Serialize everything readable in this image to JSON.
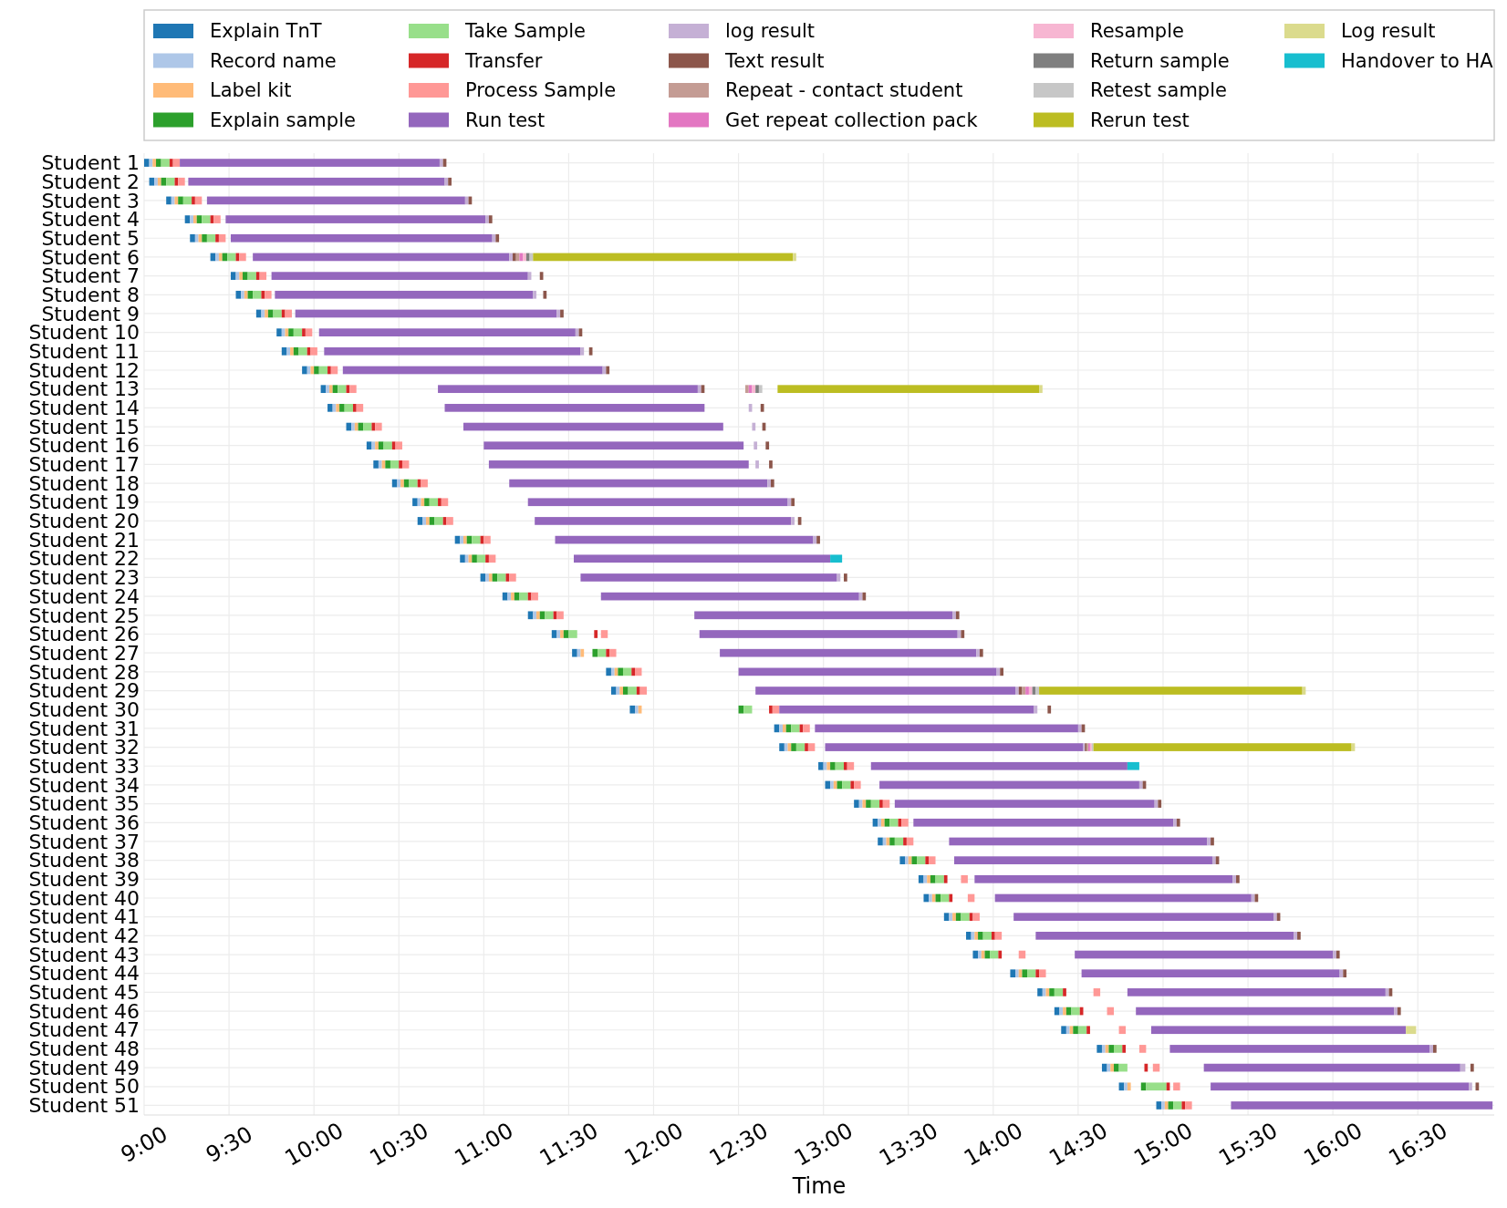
{
  "chart_data": {
    "type": "bar",
    "orientation": "horizontal",
    "xlabel": "Time",
    "grid": true,
    "legend": "top",
    "categories": [
      "Student 1",
      "Student 2",
      "Student 3",
      "Student 4",
      "Student 5",
      "Student 6",
      "Student 7",
      "Student 8",
      "Student 9",
      "Student 10",
      "Student 11",
      "Student 12",
      "Student 13",
      "Student 14",
      "Student 15",
      "Student 16",
      "Student 17",
      "Student 18",
      "Student 19",
      "Student 20",
      "Student 21",
      "Student 22",
      "Student 23",
      "Student 24",
      "Student 25",
      "Student 26",
      "Student 27",
      "Student 28",
      "Student 29",
      "Student 30",
      "Student 31",
      "Student 32",
      "Student 33",
      "Student 34",
      "Student 35",
      "Student 36",
      "Student 37",
      "Student 38",
      "Student 39",
      "Student 40",
      "Student 41",
      "Student 42",
      "Student 43",
      "Student 44",
      "Student 45",
      "Student 46",
      "Student 47",
      "Student 48",
      "Student 49",
      "Student 50",
      "Student 51"
    ],
    "xlim": [
      9,
      16.95
    ],
    "xticks": [
      {
        "value": 9,
        "label": "9:00"
      },
      {
        "value": 9.5,
        "label": "9:30"
      },
      {
        "value": 10,
        "label": "10:00"
      },
      {
        "value": 10.5,
        "label": "10:30"
      },
      {
        "value": 11,
        "label": "11:00"
      },
      {
        "value": 11.5,
        "label": "11:30"
      },
      {
        "value": 12,
        "label": "12:00"
      },
      {
        "value": 12.5,
        "label": "12:30"
      },
      {
        "value": 13,
        "label": "13:00"
      },
      {
        "value": 13.5,
        "label": "13:30"
      },
      {
        "value": 14,
        "label": "14:00"
      },
      {
        "value": 14.5,
        "label": "14:30"
      },
      {
        "value": 15,
        "label": "15:00"
      },
      {
        "value": 15.5,
        "label": "15:30"
      },
      {
        "value": 16,
        "label": "16:00"
      },
      {
        "value": 16.5,
        "label": "16:30"
      }
    ],
    "series": [
      {
        "name": "Explain TnT",
        "color": "#1f77b4",
        "base": [
          9.0,
          9.03,
          9.13,
          9.24,
          9.27,
          9.39,
          9.51,
          9.54,
          9.66,
          9.78,
          9.81,
          9.93,
          10.04,
          10.08,
          10.19,
          10.31,
          10.35,
          10.46,
          10.58,
          10.61,
          10.83,
          10.86,
          10.98,
          11.11,
          11.26,
          11.4,
          11.52,
          11.72,
          11.75,
          11.86,
          12.71,
          12.74,
          12.97,
          13.01,
          13.18,
          13.29,
          13.32,
          13.45,
          13.56,
          13.59,
          13.71,
          13.84,
          13.88,
          14.1,
          14.26,
          14.36,
          14.4,
          14.61,
          14.64,
          14.74,
          14.96
        ],
        "values": [
          0.03,
          0.03,
          0.03,
          0.03,
          0.03,
          0.03,
          0.03,
          0.03,
          0.03,
          0.03,
          0.03,
          0.03,
          0.03,
          0.03,
          0.03,
          0.03,
          0.03,
          0.03,
          0.03,
          0.03,
          0.03,
          0.03,
          0.03,
          0.03,
          0.03,
          0.03,
          0.03,
          0.03,
          0.03,
          0.03,
          0.03,
          0.03,
          0.03,
          0.03,
          0.03,
          0.03,
          0.03,
          0.03,
          0.03,
          0.03,
          0.03,
          0.03,
          0.03,
          0.03,
          0.03,
          0.03,
          0.03,
          0.03,
          0.03,
          0.03,
          0.03
        ]
      },
      {
        "name": "Record name",
        "color": "#aec7e8",
        "base": [
          9.03,
          9.06,
          9.16,
          9.27,
          9.3,
          9.42,
          9.54,
          9.57,
          9.69,
          9.81,
          9.84,
          9.96,
          10.07,
          10.11,
          10.22,
          10.34,
          10.38,
          10.49,
          10.61,
          10.64,
          10.86,
          10.89,
          11.01,
          11.14,
          11.29,
          11.43,
          11.55,
          11.75,
          11.78,
          11.89,
          12.74,
          12.77,
          13.0,
          13.04,
          13.21,
          13.32,
          13.35,
          13.48,
          13.59,
          13.62,
          13.74,
          13.87,
          13.91,
          14.13,
          14.29,
          14.39,
          14.43,
          14.64,
          14.67,
          14.77,
          14.99
        ],
        "values": [
          0.02,
          0.02,
          0.02,
          0.02,
          0.02,
          0.02,
          0.02,
          0.02,
          0.02,
          0.02,
          0.02,
          0.02,
          0.02,
          0.02,
          0.02,
          0.02,
          0.02,
          0.02,
          0.02,
          0.02,
          0.02,
          0.02,
          0.02,
          0.02,
          0.02,
          0.02,
          0.02,
          0.02,
          0.02,
          0.02,
          0.02,
          0.02,
          0.02,
          0.02,
          0.02,
          0.02,
          0.02,
          0.02,
          0.02,
          0.02,
          0.02,
          0.02,
          0.02,
          0.02,
          0.02,
          0.02,
          0.02,
          0.02,
          0.02,
          0.02,
          0.02
        ]
      },
      {
        "name": "Label kit",
        "color": "#ffbb78",
        "base": [
          9.05,
          9.08,
          9.18,
          9.29,
          9.32,
          9.44,
          9.56,
          9.59,
          9.71,
          9.83,
          9.86,
          9.98,
          10.09,
          10.13,
          10.24,
          10.36,
          10.4,
          10.51,
          10.63,
          10.66,
          10.88,
          10.91,
          11.03,
          11.16,
          11.31,
          11.45,
          11.57,
          11.77,
          11.8,
          11.91,
          12.76,
          12.79,
          13.02,
          13.06,
          13.23,
          13.34,
          13.37,
          13.5,
          13.61,
          13.64,
          13.76,
          13.89,
          13.93,
          14.15,
          14.31,
          14.41,
          14.45,
          14.66,
          14.69,
          14.79,
          15.01
        ],
        "values": [
          0.02,
          0.02,
          0.02,
          0.02,
          0.02,
          0.02,
          0.02,
          0.02,
          0.02,
          0.02,
          0.02,
          0.02,
          0.02,
          0.02,
          0.02,
          0.02,
          0.02,
          0.02,
          0.02,
          0.02,
          0.02,
          0.02,
          0.02,
          0.02,
          0.02,
          0.02,
          0.02,
          0.02,
          0.02,
          0.02,
          0.02,
          0.02,
          0.02,
          0.02,
          0.02,
          0.02,
          0.02,
          0.02,
          0.02,
          0.02,
          0.02,
          0.02,
          0.02,
          0.02,
          0.02,
          0.02,
          0.02,
          0.02,
          0.02,
          0.02,
          0.02
        ]
      },
      {
        "name": "Explain sample",
        "color": "#2ca02c",
        "base": [
          9.07,
          9.1,
          9.2,
          9.31,
          9.34,
          9.46,
          9.58,
          9.61,
          9.73,
          9.85,
          9.88,
          10.0,
          10.11,
          10.15,
          10.26,
          10.38,
          10.42,
          10.53,
          10.65,
          10.68,
          10.9,
          10.93,
          11.05,
          11.18,
          11.33,
          11.47,
          11.64,
          11.79,
          11.82,
          12.5,
          12.78,
          12.81,
          13.04,
          13.08,
          13.25,
          13.36,
          13.39,
          13.52,
          13.63,
          13.66,
          13.78,
          13.91,
          13.95,
          14.17,
          14.33,
          14.43,
          14.47,
          14.68,
          14.71,
          14.87,
          15.03
        ],
        "values": [
          0.03,
          0.03,
          0.03,
          0.03,
          0.03,
          0.03,
          0.03,
          0.03,
          0.03,
          0.03,
          0.03,
          0.03,
          0.03,
          0.03,
          0.03,
          0.03,
          0.03,
          0.03,
          0.03,
          0.03,
          0.03,
          0.03,
          0.03,
          0.03,
          0.03,
          0.03,
          0.03,
          0.03,
          0.03,
          0.03,
          0.03,
          0.03,
          0.03,
          0.03,
          0.03,
          0.03,
          0.03,
          0.03,
          0.03,
          0.03,
          0.03,
          0.03,
          0.03,
          0.03,
          0.03,
          0.03,
          0.03,
          0.03,
          0.03,
          0.03,
          0.03
        ]
      },
      {
        "name": "Take Sample",
        "color": "#98df8a",
        "base": [
          9.1,
          9.13,
          9.23,
          9.34,
          9.37,
          9.49,
          9.61,
          9.64,
          9.76,
          9.88,
          9.91,
          10.03,
          10.14,
          10.18,
          10.29,
          10.41,
          10.45,
          10.56,
          10.68,
          10.71,
          10.93,
          10.96,
          11.08,
          11.21,
          11.36,
          11.5,
          11.67,
          11.82,
          11.85,
          12.53,
          12.81,
          12.84,
          13.07,
          13.11,
          13.28,
          13.39,
          13.42,
          13.55,
          13.66,
          13.69,
          13.81,
          13.94,
          13.98,
          14.2,
          14.36,
          14.46,
          14.5,
          14.71,
          14.74,
          14.9,
          15.06
        ],
        "values": [
          0.05,
          0.05,
          0.05,
          0.05,
          0.05,
          0.05,
          0.05,
          0.05,
          0.05,
          0.05,
          0.05,
          0.05,
          0.05,
          0.05,
          0.05,
          0.05,
          0.05,
          0.05,
          0.05,
          0.05,
          0.05,
          0.05,
          0.05,
          0.05,
          0.05,
          0.05,
          0.05,
          0.05,
          0.05,
          0.05,
          0.05,
          0.05,
          0.05,
          0.05,
          0.05,
          0.05,
          0.05,
          0.05,
          0.05,
          0.05,
          0.05,
          0.05,
          0.05,
          0.05,
          0.05,
          0.05,
          0.05,
          0.05,
          0.05,
          0.12,
          0.05
        ]
      },
      {
        "name": "Transfer",
        "color": "#d62728",
        "base": [
          9.15,
          9.18,
          9.28,
          9.39,
          9.42,
          9.54,
          9.66,
          9.69,
          9.81,
          9.93,
          9.96,
          10.08,
          10.19,
          10.23,
          10.34,
          10.46,
          10.5,
          10.61,
          10.73,
          10.76,
          10.98,
          11.01,
          11.13,
          11.26,
          11.41,
          11.65,
          11.72,
          11.87,
          11.9,
          12.68,
          12.86,
          12.89,
          13.12,
          13.16,
          13.33,
          13.44,
          13.47,
          13.6,
          13.71,
          13.74,
          13.86,
          13.99,
          14.03,
          14.25,
          14.41,
          14.51,
          14.55,
          14.76,
          14.89,
          15.02,
          15.11
        ],
        "values": [
          0.02,
          0.02,
          0.02,
          0.02,
          0.02,
          0.02,
          0.02,
          0.02,
          0.02,
          0.02,
          0.02,
          0.02,
          0.02,
          0.02,
          0.02,
          0.02,
          0.02,
          0.02,
          0.02,
          0.02,
          0.02,
          0.02,
          0.02,
          0.02,
          0.02,
          0.02,
          0.02,
          0.02,
          0.02,
          0.02,
          0.02,
          0.02,
          0.02,
          0.02,
          0.02,
          0.02,
          0.02,
          0.02,
          0.02,
          0.02,
          0.02,
          0.02,
          0.02,
          0.02,
          0.02,
          0.02,
          0.02,
          0.02,
          0.02,
          0.02,
          0.02
        ]
      },
      {
        "name": "Process Sample",
        "color": "#ff9896",
        "base": [
          9.17,
          9.2,
          9.3,
          9.41,
          9.44,
          9.56,
          9.68,
          9.71,
          9.83,
          9.95,
          9.98,
          10.1,
          10.21,
          10.25,
          10.36,
          10.48,
          10.52,
          10.63,
          10.75,
          10.78,
          11.0,
          11.03,
          11.15,
          11.28,
          11.43,
          11.69,
          11.74,
          11.89,
          11.92,
          12.7,
          12.88,
          12.91,
          13.14,
          13.18,
          13.35,
          13.46,
          13.49,
          13.62,
          13.81,
          13.85,
          13.88,
          14.01,
          14.15,
          14.27,
          14.59,
          14.67,
          14.74,
          14.86,
          14.94,
          15.06,
          15.13
        ],
        "values": [
          0.04,
          0.04,
          0.04,
          0.04,
          0.04,
          0.04,
          0.04,
          0.04,
          0.04,
          0.04,
          0.04,
          0.04,
          0.04,
          0.04,
          0.04,
          0.04,
          0.04,
          0.04,
          0.04,
          0.04,
          0.04,
          0.04,
          0.04,
          0.04,
          0.04,
          0.04,
          0.04,
          0.04,
          0.04,
          0.04,
          0.04,
          0.04,
          0.04,
          0.04,
          0.04,
          0.04,
          0.04,
          0.04,
          0.04,
          0.04,
          0.04,
          0.04,
          0.04,
          0.04,
          0.04,
          0.04,
          0.04,
          0.04,
          0.04,
          0.04,
          0.04
        ]
      },
      {
        "name": "Run test",
        "color": "#9467bd",
        "base": [
          9.21,
          9.26,
          9.37,
          9.48,
          9.51,
          9.64,
          9.75,
          9.77,
          9.89,
          10.03,
          10.06,
          10.17,
          10.73,
          10.77,
          10.88,
          11.0,
          11.03,
          11.15,
          11.26,
          11.3,
          11.42,
          11.53,
          11.57,
          11.69,
          12.24,
          12.27,
          12.39,
          12.5,
          12.6,
          12.74,
          12.95,
          13.01,
          13.28,
          13.33,
          13.42,
          13.53,
          13.74,
          13.77,
          13.89,
          14.01,
          14.12,
          14.25,
          14.48,
          14.52,
          14.79,
          14.84,
          14.93,
          15.04,
          15.24,
          15.28,
          15.4
        ],
        "values": [
          1.53,
          1.51,
          1.52,
          1.53,
          1.54,
          1.51,
          1.51,
          1.52,
          1.54,
          1.51,
          1.51,
          1.53,
          1.53,
          1.53,
          1.53,
          1.53,
          1.53,
          1.52,
          1.53,
          1.51,
          1.52,
          1.51,
          1.51,
          1.52,
          1.52,
          1.52,
          1.51,
          1.52,
          1.53,
          1.5,
          1.55,
          1.52,
          1.51,
          1.53,
          1.53,
          1.53,
          1.52,
          1.52,
          1.52,
          1.51,
          1.53,
          1.52,
          1.52,
          1.52,
          1.52,
          1.52,
          1.5,
          1.53,
          1.51,
          1.52,
          1.54
        ]
      },
      {
        "name": "log result",
        "color": "#c5b0d5",
        "base": [
          10.74,
          10.77,
          10.89,
          11.01,
          11.05,
          11.15,
          11.26,
          11.29,
          11.43,
          11.54,
          11.57,
          11.7,
          12.26,
          12.56,
          12.58,
          12.59,
          12.6,
          12.67,
          12.79,
          12.81,
          12.94,
          null,
          13.08,
          13.21,
          13.76,
          13.79,
          13.9,
          14.02,
          14.13,
          14.24,
          14.5,
          14.53,
          null,
          14.86,
          14.95,
          15.06,
          15.26,
          15.29,
          15.41,
          15.52,
          15.65,
          15.77,
          16.0,
          16.04,
          16.31,
          16.36,
          null,
          16.57,
          16.75,
          16.8,
          null
        ],
        "values": [
          0.02,
          0.02,
          0.02,
          0.02,
          0.02,
          0.02,
          0.02,
          0.02,
          0.02,
          0.02,
          0.02,
          0.02,
          0.02,
          0.02,
          0.02,
          0.02,
          0.02,
          0.02,
          0.02,
          0.02,
          0.02,
          null,
          0.02,
          0.02,
          0.02,
          0.02,
          0.02,
          0.02,
          0.02,
          0.02,
          0.02,
          0.01,
          null,
          0.02,
          0.02,
          0.02,
          0.02,
          0.02,
          0.02,
          0.02,
          0.02,
          0.02,
          0.02,
          0.02,
          0.02,
          0.02,
          null,
          0.02,
          0.03,
          0.02,
          null
        ]
      },
      {
        "name": "Text result",
        "color": "#8c564b",
        "base": [
          10.76,
          10.79,
          10.91,
          11.03,
          11.07,
          11.17,
          11.33,
          11.35,
          11.45,
          11.56,
          11.62,
          11.72,
          12.28,
          12.63,
          12.64,
          12.66,
          12.68,
          12.69,
          12.81,
          12.85,
          12.96,
          null,
          13.12,
          13.23,
          13.78,
          13.81,
          13.92,
          14.04,
          14.15,
          14.32,
          14.52,
          14.54,
          null,
          14.88,
          14.97,
          15.08,
          15.28,
          15.31,
          15.43,
          15.54,
          15.67,
          15.79,
          16.02,
          16.06,
          16.33,
          16.38,
          null,
          16.59,
          16.81,
          16.84,
          null
        ],
        "values": [
          0.02,
          0.02,
          0.02,
          0.02,
          0.02,
          0.02,
          0.02,
          0.02,
          0.02,
          0.02,
          0.02,
          0.02,
          0.02,
          0.02,
          0.02,
          0.02,
          0.02,
          0.02,
          0.02,
          0.02,
          0.02,
          null,
          0.02,
          0.02,
          0.02,
          0.02,
          0.02,
          0.02,
          0.02,
          0.02,
          0.02,
          0.01,
          null,
          0.02,
          0.02,
          0.02,
          0.02,
          0.02,
          0.02,
          0.02,
          0.02,
          0.02,
          0.02,
          0.02,
          0.02,
          0.02,
          null,
          0.02,
          0.02,
          0.02,
          null
        ]
      },
      {
        "name": "Repeat - contact student",
        "color": "#c49c94",
        "base": [
          null,
          null,
          null,
          null,
          null,
          11.19,
          null,
          null,
          null,
          null,
          null,
          null,
          12.54,
          null,
          null,
          null,
          null,
          null,
          null,
          null,
          null,
          null,
          null,
          null,
          null,
          null,
          null,
          null,
          14.17,
          null,
          null,
          14.55,
          null,
          null,
          null,
          null,
          null,
          null,
          null,
          null,
          null,
          null,
          null,
          null,
          null,
          null,
          null,
          null,
          null,
          null,
          null
        ],
        "values": [
          null,
          null,
          null,
          null,
          null,
          0.02,
          null,
          null,
          null,
          null,
          null,
          null,
          0.02,
          null,
          null,
          null,
          null,
          null,
          null,
          null,
          null,
          null,
          null,
          null,
          null,
          null,
          null,
          null,
          0.02,
          null,
          null,
          0.01,
          null,
          null,
          null,
          null,
          null,
          null,
          null,
          null,
          null,
          null,
          null,
          null,
          null,
          null,
          null,
          null,
          null,
          null,
          null
        ]
      },
      {
        "name": "Get repeat collection pack",
        "color": "#e377c2",
        "base": [
          null,
          null,
          null,
          null,
          null,
          11.21,
          null,
          null,
          null,
          null,
          null,
          null,
          12.56,
          null,
          null,
          null,
          null,
          null,
          null,
          null,
          null,
          null,
          null,
          null,
          null,
          null,
          null,
          null,
          14.19,
          null,
          null,
          14.56,
          null,
          null,
          null,
          null,
          null,
          null,
          null,
          null,
          null,
          null,
          null,
          null,
          null,
          null,
          null,
          null,
          null,
          null,
          null
        ],
        "values": [
          null,
          null,
          null,
          null,
          null,
          0.02,
          null,
          null,
          null,
          null,
          null,
          null,
          0.02,
          null,
          null,
          null,
          null,
          null,
          null,
          null,
          null,
          null,
          null,
          null,
          null,
          null,
          null,
          null,
          0.02,
          null,
          null,
          0.01,
          null,
          null,
          null,
          null,
          null,
          null,
          null,
          null,
          null,
          null,
          null,
          null,
          null,
          null,
          null,
          null,
          null,
          null,
          null
        ]
      },
      {
        "name": "Resample",
        "color": "#f7b6d2",
        "base": [
          null,
          null,
          null,
          null,
          null,
          11.23,
          null,
          null,
          null,
          null,
          null,
          null,
          12.58,
          null,
          null,
          null,
          null,
          null,
          null,
          null,
          null,
          null,
          null,
          null,
          null,
          null,
          null,
          null,
          14.21,
          null,
          null,
          14.57,
          null,
          null,
          null,
          null,
          null,
          null,
          null,
          null,
          null,
          null,
          null,
          null,
          null,
          null,
          null,
          null,
          null,
          null,
          null
        ],
        "values": [
          null,
          null,
          null,
          null,
          null,
          0.02,
          null,
          null,
          null,
          null,
          null,
          null,
          0.02,
          null,
          null,
          null,
          null,
          null,
          null,
          null,
          null,
          null,
          null,
          null,
          null,
          null,
          null,
          null,
          0.02,
          null,
          null,
          0.01,
          null,
          null,
          null,
          null,
          null,
          null,
          null,
          null,
          null,
          null,
          null,
          null,
          null,
          null,
          null,
          null,
          null,
          null,
          null
        ]
      },
      {
        "name": "Return sample",
        "color": "#7f7f7f",
        "base": [
          null,
          null,
          null,
          null,
          null,
          11.25,
          null,
          null,
          null,
          null,
          null,
          null,
          12.6,
          null,
          null,
          null,
          null,
          null,
          null,
          null,
          null,
          null,
          null,
          null,
          null,
          null,
          null,
          null,
          14.23,
          null,
          null,
          null,
          null,
          null,
          null,
          null,
          null,
          null,
          null,
          null,
          null,
          null,
          null,
          null,
          null,
          null,
          null,
          null,
          null,
          null,
          null
        ],
        "values": [
          null,
          null,
          null,
          null,
          null,
          0.02,
          null,
          null,
          null,
          null,
          null,
          null,
          0.02,
          null,
          null,
          null,
          null,
          null,
          null,
          null,
          null,
          null,
          null,
          null,
          null,
          null,
          null,
          null,
          0.02,
          null,
          null,
          null,
          null,
          null,
          null,
          null,
          null,
          null,
          null,
          null,
          null,
          null,
          null,
          null,
          null,
          null,
          null,
          null,
          null,
          null,
          null
        ]
      },
      {
        "name": "Retest sample",
        "color": "#c7c7c7",
        "base": [
          null,
          null,
          null,
          null,
          null,
          11.27,
          null,
          null,
          null,
          null,
          null,
          null,
          12.62,
          null,
          null,
          null,
          null,
          null,
          null,
          null,
          null,
          null,
          null,
          null,
          null,
          null,
          null,
          null,
          14.25,
          null,
          null,
          14.58,
          null,
          null,
          null,
          null,
          null,
          null,
          null,
          null,
          null,
          null,
          null,
          null,
          null,
          null,
          null,
          null,
          null,
          null,
          null
        ],
        "values": [
          null,
          null,
          null,
          null,
          null,
          0.02,
          null,
          null,
          null,
          null,
          null,
          null,
          0.02,
          null,
          null,
          null,
          null,
          null,
          null,
          null,
          null,
          null,
          null,
          null,
          null,
          null,
          null,
          null,
          0.02,
          null,
          null,
          0.01,
          null,
          null,
          null,
          null,
          null,
          null,
          null,
          null,
          null,
          null,
          null,
          null,
          null,
          null,
          null,
          null,
          null,
          null,
          null
        ]
      },
      {
        "name": "Rerun test",
        "color": "#bcbd22",
        "base": [
          null,
          null,
          null,
          null,
          null,
          11.29,
          null,
          null,
          null,
          null,
          null,
          null,
          12.73,
          null,
          null,
          null,
          null,
          null,
          null,
          null,
          null,
          null,
          null,
          null,
          null,
          null,
          null,
          null,
          14.27,
          null,
          null,
          14.59,
          null,
          null,
          null,
          null,
          null,
          null,
          null,
          null,
          null,
          null,
          null,
          null,
          null,
          null,
          null,
          null,
          null,
          null,
          null
        ],
        "values": [
          null,
          null,
          null,
          null,
          null,
          1.53,
          null,
          null,
          null,
          null,
          null,
          null,
          1.54,
          null,
          null,
          null,
          null,
          null,
          null,
          null,
          null,
          null,
          null,
          null,
          null,
          null,
          null,
          null,
          1.55,
          null,
          null,
          1.52,
          null,
          null,
          null,
          null,
          null,
          null,
          null,
          null,
          null,
          null,
          null,
          null,
          null,
          null,
          null,
          null,
          null,
          null,
          null
        ]
      },
      {
        "name": "Log result",
        "color": "#dbdb8d",
        "base": [
          null,
          null,
          null,
          null,
          null,
          12.82,
          null,
          null,
          null,
          null,
          null,
          null,
          14.27,
          null,
          null,
          null,
          null,
          null,
          null,
          null,
          null,
          null,
          null,
          null,
          null,
          null,
          null,
          null,
          15.82,
          null,
          null,
          16.11,
          null,
          null,
          null,
          null,
          null,
          null,
          null,
          null,
          null,
          null,
          null,
          null,
          null,
          null,
          16.43,
          null,
          null,
          null,
          null
        ],
        "values": [
          null,
          null,
          null,
          null,
          null,
          0.02,
          null,
          null,
          null,
          null,
          null,
          null,
          0.02,
          null,
          null,
          null,
          null,
          null,
          null,
          null,
          null,
          null,
          null,
          null,
          null,
          null,
          null,
          null,
          0.02,
          null,
          null,
          0.02,
          null,
          null,
          null,
          null,
          null,
          null,
          null,
          null,
          null,
          null,
          null,
          null,
          null,
          null,
          0.06,
          null,
          null,
          null,
          null
        ]
      },
      {
        "name": "Handover to HA",
        "color": "#17becf",
        "base": [
          null,
          null,
          null,
          null,
          null,
          null,
          null,
          null,
          null,
          null,
          null,
          null,
          null,
          null,
          null,
          null,
          null,
          null,
          null,
          null,
          null,
          13.04,
          null,
          null,
          null,
          null,
          null,
          null,
          null,
          null,
          null,
          null,
          14.79,
          null,
          null,
          null,
          null,
          null,
          null,
          null,
          null,
          null,
          null,
          null,
          null,
          null,
          null,
          null,
          null,
          null,
          null
        ],
        "values": [
          null,
          null,
          null,
          null,
          null,
          null,
          null,
          null,
          null,
          null,
          null,
          null,
          null,
          null,
          null,
          null,
          null,
          null,
          null,
          null,
          null,
          0.07,
          null,
          null,
          null,
          null,
          null,
          null,
          null,
          null,
          null,
          null,
          0.07,
          null,
          null,
          null,
          null,
          null,
          null,
          null,
          null,
          null,
          null,
          null,
          null,
          null,
          null,
          null,
          null,
          null,
          null
        ]
      }
    ]
  }
}
